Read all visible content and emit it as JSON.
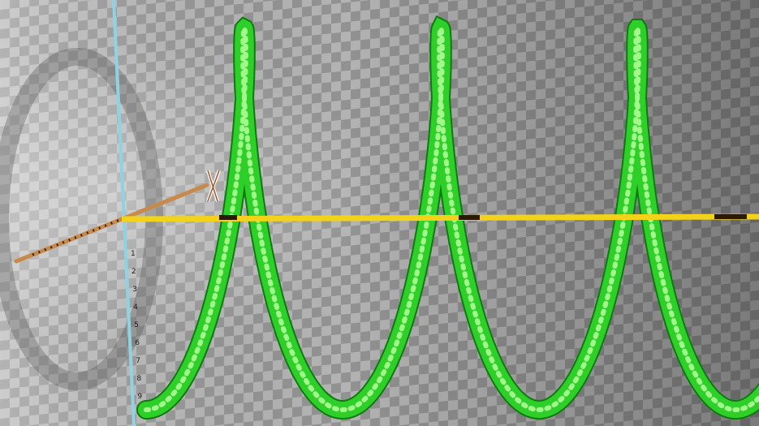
{
  "scene": {
    "description_free": true,
    "x_axis_label": "X",
    "vertical_axis_ticks": [
      "1",
      "2",
      "3",
      "4",
      "5",
      "6",
      "7",
      "8",
      "9"
    ],
    "colors": {
      "background_light": "#c9c9c9",
      "background_dark": "#7d7d7d",
      "helix": "#2fcf2a",
      "helix_dark": "#0f7a12",
      "helix_highlight": "#b7ff9d",
      "yellow_axis": "#f2d31a",
      "cyan_axis": "#8fd3e3",
      "orange_axis": "#c88a4a"
    }
  }
}
